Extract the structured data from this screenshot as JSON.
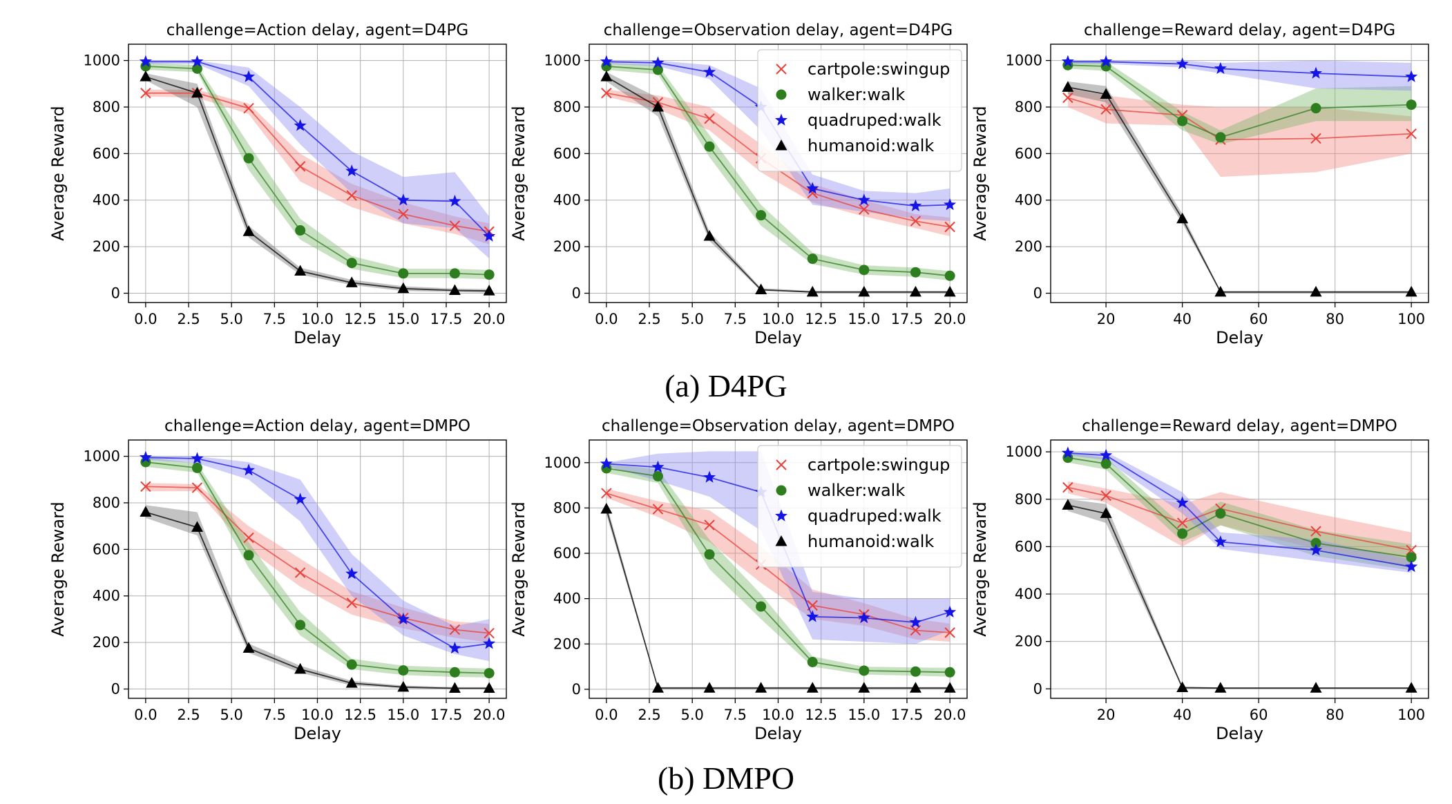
{
  "captions": {
    "a": "(a) D4PG",
    "b": "(b) DMPO"
  },
  "colors": {
    "cartpole": "#e8403a",
    "walker": "#2e7d1e",
    "quadruped": "#1414e6",
    "humanoid": "#000000",
    "cartpole_band": "#f08a84",
    "walker_band": "#7cb86a",
    "quadruped_band": "#8c8cf0",
    "humanoid_band": "#707070"
  },
  "chart_data": [
    {
      "type": "line",
      "title": "challenge=Action delay, agent=D4PG",
      "xlabel": "Delay",
      "ylabel": "Average Reward",
      "x": [
        0,
        3,
        6,
        9,
        12,
        15,
        18,
        20
      ],
      "xticks": [
        0,
        2.5,
        5,
        7.5,
        10,
        12.5,
        15,
        17.5,
        20
      ],
      "xtick_labels": [
        "0.0",
        "2.5",
        "5.0",
        "7.5",
        "10.0",
        "12.5",
        "15.0",
        "17.5",
        "20.0"
      ],
      "xlim": [
        -1,
        21
      ],
      "ylim": [
        -40,
        1070
      ],
      "yticks": [
        0,
        200,
        400,
        600,
        800,
        1000
      ],
      "grid": true,
      "legend": false,
      "series": [
        {
          "name": "cartpole:swingup",
          "values": [
            860,
            860,
            795,
            545,
            420,
            340,
            290,
            265
          ],
          "lower": [
            845,
            840,
            770,
            480,
            370,
            300,
            255,
            210
          ],
          "upper": [
            875,
            875,
            815,
            600,
            470,
            390,
            330,
            300
          ]
        },
        {
          "name": "walker:walk",
          "values": [
            975,
            965,
            580,
            270,
            130,
            85,
            85,
            80
          ],
          "lower": [
            960,
            950,
            530,
            230,
            105,
            65,
            65,
            60
          ],
          "upper": [
            990,
            980,
            640,
            320,
            160,
            105,
            105,
            100
          ]
        },
        {
          "name": "quadruped:walk",
          "values": [
            995,
            995,
            930,
            720,
            525,
            400,
            395,
            245
          ],
          "lower": [
            985,
            985,
            890,
            640,
            430,
            300,
            280,
            150
          ],
          "upper": [
            1000,
            1000,
            970,
            800,
            610,
            500,
            520,
            330
          ]
        },
        {
          "name": "humanoid:walk",
          "values": [
            930,
            860,
            265,
            95,
            45,
            20,
            12,
            10
          ],
          "lower": [
            915,
            800,
            240,
            80,
            35,
            10,
            5,
            2
          ],
          "upper": [
            945,
            900,
            290,
            110,
            58,
            30,
            20,
            18
          ]
        }
      ]
    },
    {
      "type": "line",
      "title": "challenge=Observation delay, agent=D4PG",
      "xlabel": "Delay",
      "ylabel": "Average Reward",
      "x": [
        0,
        3,
        6,
        9,
        12,
        15,
        18,
        20
      ],
      "xticks": [
        0,
        2.5,
        5,
        7.5,
        10,
        12.5,
        15,
        17.5,
        20
      ],
      "xtick_labels": [
        "0.0",
        "2.5",
        "5.0",
        "7.5",
        "10.0",
        "12.5",
        "15.0",
        "17.5",
        "20.0"
      ],
      "xlim": [
        -1,
        21
      ],
      "ylim": [
        -40,
        1070
      ],
      "yticks": [
        0,
        200,
        400,
        600,
        800,
        1000
      ],
      "grid": true,
      "legend": "top-right",
      "series": [
        {
          "name": "cartpole:swingup",
          "values": [
            860,
            820,
            750,
            580,
            430,
            360,
            310,
            285
          ],
          "lower": [
            845,
            790,
            700,
            520,
            390,
            330,
            280,
            245
          ],
          "upper": [
            875,
            850,
            800,
            640,
            470,
            400,
            340,
            325
          ]
        },
        {
          "name": "walker:walk",
          "values": [
            975,
            960,
            630,
            335,
            148,
            100,
            90,
            75
          ],
          "lower": [
            960,
            940,
            585,
            290,
            125,
            80,
            70,
            55
          ],
          "upper": [
            990,
            980,
            680,
            380,
            175,
            120,
            110,
            95
          ]
        },
        {
          "name": "quadruped:walk",
          "values": [
            995,
            990,
            950,
            800,
            450,
            400,
            375,
            380
          ],
          "lower": [
            985,
            975,
            920,
            700,
            380,
            350,
            320,
            310
          ],
          "upper": [
            1000,
            1000,
            980,
            880,
            510,
            440,
            430,
            450
          ]
        },
        {
          "name": "humanoid:walk",
          "values": [
            930,
            800,
            245,
            15,
            5,
            5,
            5,
            5
          ],
          "lower": [
            910,
            760,
            225,
            10,
            2,
            2,
            2,
            2
          ],
          "upper": [
            950,
            840,
            265,
            22,
            10,
            10,
            10,
            10
          ]
        }
      ]
    },
    {
      "type": "line",
      "title": "challenge=Reward delay, agent=D4PG",
      "xlabel": "Delay",
      "ylabel": "Average Reward",
      "x": [
        10,
        20,
        40,
        50,
        75,
        100
      ],
      "xticks": [
        20,
        40,
        60,
        80,
        100
      ],
      "xtick_labels": [
        "20",
        "40",
        "60",
        "80",
        "100"
      ],
      "xlim": [
        5.5,
        104.5
      ],
      "ylim": [
        -40,
        1070
      ],
      "yticks": [
        0,
        200,
        400,
        600,
        800,
        1000
      ],
      "grid": true,
      "legend": false,
      "series": [
        {
          "name": "cartpole:swingup",
          "values": [
            840,
            790,
            765,
            660,
            665,
            685
          ],
          "lower": [
            800,
            730,
            720,
            500,
            520,
            600
          ],
          "upper": [
            880,
            850,
            810,
            800,
            800,
            760
          ]
        },
        {
          "name": "walker:walk",
          "values": [
            980,
            975,
            740,
            670,
            795,
            810
          ],
          "lower": [
            965,
            955,
            700,
            640,
            740,
            740
          ],
          "upper": [
            995,
            995,
            780,
            700,
            880,
            890
          ]
        },
        {
          "name": "quadruped:walk",
          "values": [
            995,
            995,
            985,
            965,
            945,
            930
          ],
          "lower": [
            985,
            985,
            970,
            945,
            880,
            870
          ],
          "upper": [
            1000,
            1000,
            1000,
            990,
            1000,
            990
          ]
        },
        {
          "name": "humanoid:walk",
          "values": [
            885,
            855,
            320,
            5,
            5,
            5
          ],
          "lower": [
            855,
            820,
            300,
            2,
            2,
            2
          ],
          "upper": [
            910,
            890,
            340,
            10,
            10,
            10
          ]
        }
      ]
    },
    {
      "type": "line",
      "title": "challenge=Action delay, agent=DMPO",
      "xlabel": "Delay",
      "ylabel": "Average Reward",
      "x": [
        0,
        3,
        6,
        9,
        12,
        15,
        18,
        20
      ],
      "xticks": [
        0,
        2.5,
        5,
        7.5,
        10,
        12.5,
        15,
        17.5,
        20
      ],
      "xtick_labels": [
        "0.0",
        "2.5",
        "5.0",
        "7.5",
        "10.0",
        "12.5",
        "15.0",
        "17.5",
        "20.0"
      ],
      "xlim": [
        -1,
        21
      ],
      "ylim": [
        -40,
        1070
      ],
      "yticks": [
        0,
        200,
        400,
        600,
        800,
        1000
      ],
      "grid": true,
      "legend": false,
      "series": [
        {
          "name": "cartpole:swingup",
          "values": [
            870,
            865,
            650,
            500,
            370,
            305,
            255,
            240
          ],
          "lower": [
            850,
            850,
            600,
            440,
            320,
            260,
            220,
            200
          ],
          "upper": [
            885,
            880,
            700,
            560,
            420,
            350,
            290,
            280
          ]
        },
        {
          "name": "walker:walk",
          "values": [
            975,
            950,
            575,
            275,
            105,
            80,
            72,
            68
          ],
          "lower": [
            955,
            930,
            520,
            230,
            85,
            60,
            52,
            50
          ],
          "upper": [
            995,
            970,
            630,
            330,
            130,
            100,
            92,
            88
          ]
        },
        {
          "name": "quadruped:walk",
          "values": [
            995,
            990,
            940,
            815,
            495,
            300,
            175,
            195
          ],
          "lower": [
            985,
            970,
            900,
            720,
            400,
            230,
            150,
            120
          ],
          "upper": [
            1000,
            1000,
            975,
            900,
            580,
            380,
            270,
            300
          ]
        },
        {
          "name": "humanoid:walk",
          "values": [
            760,
            695,
            175,
            85,
            25,
            8,
            3,
            3
          ],
          "lower": [
            735,
            660,
            155,
            70,
            15,
            3,
            1,
            1
          ],
          "upper": [
            790,
            760,
            195,
            100,
            35,
            15,
            8,
            8
          ]
        }
      ]
    },
    {
      "type": "line",
      "title": "challenge=Observation delay, agent=DMPO",
      "xlabel": "Delay",
      "ylabel": "Average Reward",
      "x": [
        0,
        3,
        6,
        9,
        12,
        15,
        18,
        20
      ],
      "xticks": [
        0,
        2.5,
        5,
        7.5,
        10,
        12.5,
        15,
        17.5,
        20
      ],
      "xtick_labels": [
        "0.0",
        "2.5",
        "5.0",
        "7.5",
        "10.0",
        "12.5",
        "15.0",
        "17.5",
        "20.0"
      ],
      "xlim": [
        -1,
        21
      ],
      "ylim": [
        -40,
        1100
      ],
      "yticks": [
        0,
        200,
        400,
        600,
        800,
        1000
      ],
      "grid": true,
      "legend": "top-right",
      "series": [
        {
          "name": "cartpole:swingup",
          "values": [
            865,
            795,
            725,
            550,
            370,
            330,
            260,
            250
          ],
          "lower": [
            845,
            760,
            650,
            470,
            310,
            280,
            220,
            210
          ],
          "upper": [
            885,
            830,
            790,
            630,
            440,
            380,
            310,
            290
          ]
        },
        {
          "name": "walker:walk",
          "values": [
            975,
            940,
            595,
            365,
            120,
            82,
            78,
            75
          ],
          "lower": [
            955,
            910,
            530,
            310,
            100,
            65,
            60,
            55
          ],
          "upper": [
            995,
            970,
            660,
            420,
            145,
            100,
            96,
            95
          ]
        },
        {
          "name": "quadruped:walk",
          "values": [
            995,
            980,
            935,
            870,
            320,
            315,
            295,
            340
          ],
          "lower": [
            985,
            920,
            850,
            700,
            220,
            210,
            200,
            260
          ],
          "upper": [
            1000,
            1040,
            1050,
            1050,
            430,
            400,
            400,
            400
          ]
        },
        {
          "name": "humanoid:walk",
          "values": [
            795,
            5,
            5,
            5,
            5,
            5,
            5,
            5
          ],
          "lower": [
            770,
            2,
            2,
            2,
            2,
            2,
            2,
            2
          ],
          "upper": [
            820,
            10,
            10,
            10,
            10,
            10,
            10,
            10
          ]
        }
      ]
    },
    {
      "type": "line",
      "title": "challenge=Reward delay, agent=DMPO",
      "xlabel": "Delay",
      "ylabel": "Average Reward",
      "x": [
        10,
        20,
        40,
        50,
        75,
        100
      ],
      "xticks": [
        20,
        40,
        60,
        80,
        100
      ],
      "xtick_labels": [
        "20",
        "40",
        "60",
        "80",
        "100"
      ],
      "xlim": [
        5.5,
        104.5
      ],
      "ylim": [
        -40,
        1050
      ],
      "yticks": [
        0,
        200,
        400,
        600,
        800,
        1000
      ],
      "grid": true,
      "legend": false,
      "series": [
        {
          "name": "cartpole:swingup",
          "values": [
            850,
            815,
            700,
            760,
            665,
            585
          ],
          "lower": [
            825,
            785,
            600,
            690,
            590,
            510
          ],
          "upper": [
            875,
            845,
            780,
            830,
            740,
            660
          ]
        },
        {
          "name": "walker:walk",
          "values": [
            975,
            950,
            655,
            740,
            615,
            555
          ],
          "lower": [
            955,
            925,
            620,
            690,
            560,
            500
          ],
          "upper": [
            995,
            975,
            690,
            790,
            670,
            610
          ]
        },
        {
          "name": "quadruped:walk",
          "values": [
            995,
            985,
            785,
            620,
            585,
            515
          ],
          "lower": [
            985,
            965,
            740,
            590,
            540,
            490
          ],
          "upper": [
            1000,
            1000,
            830,
            660,
            630,
            545
          ]
        },
        {
          "name": "humanoid:walk",
          "values": [
            775,
            740,
            5,
            3,
            3,
            3
          ],
          "lower": [
            750,
            700,
            2,
            1,
            1,
            1
          ],
          "upper": [
            800,
            780,
            10,
            6,
            6,
            6
          ]
        }
      ]
    }
  ]
}
